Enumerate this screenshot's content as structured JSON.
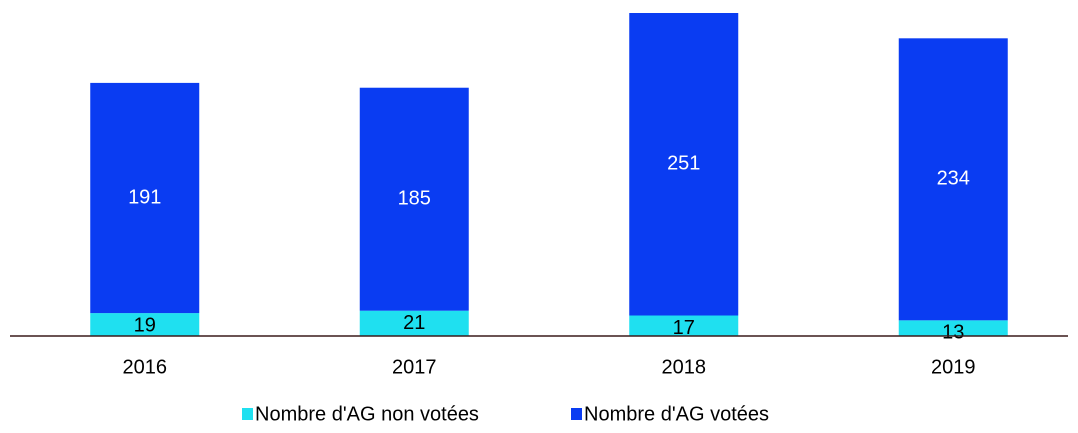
{
  "chart_data": {
    "type": "stacked_bar",
    "categories": [
      "2016",
      "2017",
      "2018",
      "2019"
    ],
    "series": [
      {
        "name": "Nombre d'AG non votées",
        "color": "#1fe0f0",
        "values": [
          19,
          21,
          17,
          13
        ]
      },
      {
        "name": "Nombre d'AG votées",
        "color": "#0a3cf2",
        "values": [
          191,
          185,
          251,
          234
        ]
      }
    ],
    "legend": "bottom"
  }
}
